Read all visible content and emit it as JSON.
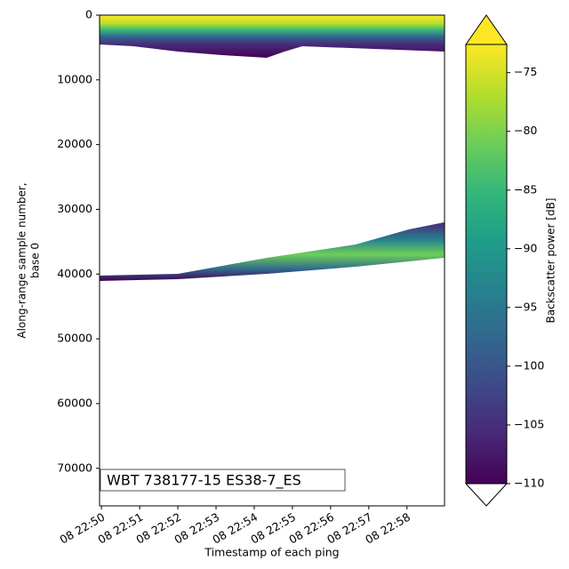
{
  "chart_data": {
    "type": "heatmap",
    "ylabel": [
      "Along-range sample number,",
      "base 0"
    ],
    "xlabel": "Timestamp of each ping",
    "annotation": "WBT 738177-15 ES38-7_ES",
    "colorbar_label": "Backscatter power [dB]",
    "ylim": [
      0,
      75800
    ],
    "y_inverted": true,
    "yticks": [
      0,
      10000,
      20000,
      30000,
      40000,
      50000,
      60000,
      70000
    ],
    "xlim": [
      "08 22:49:57",
      "08 22:58:59"
    ],
    "xticks": [
      "08 22:50",
      "08 22:51",
      "08 22:52",
      "08 22:53",
      "08 22:54",
      "08 22:55",
      "08 22:56",
      "08 22:57",
      "08 22:58"
    ],
    "clim": [
      -110,
      -72.6
    ],
    "cticks": [
      {
        "value": -75,
        "label": "−75"
      },
      {
        "value": -80,
        "label": "−80"
      },
      {
        "value": -85,
        "label": "−85"
      },
      {
        "value": -90,
        "label": "−90"
      },
      {
        "value": -95,
        "label": "−95"
      },
      {
        "value": -100,
        "label": "−100"
      },
      {
        "value": -105,
        "label": "−105"
      },
      {
        "value": -110,
        "label": "−110"
      }
    ],
    "colormap": [
      "#440154",
      "#482878",
      "#3e4989",
      "#31688e",
      "#26828e",
      "#1f9e89",
      "#35b779",
      "#6ece58",
      "#b5de2b",
      "#fde725"
    ],
    "extend": "both",
    "under_color": "#ffffff"
  }
}
